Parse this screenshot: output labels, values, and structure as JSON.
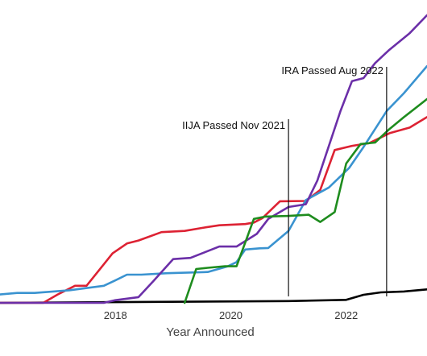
{
  "chart_data": {
    "type": "line",
    "title": "",
    "xlabel": "Year Announced",
    "ylabel": "",
    "xlim": [
      2016.0,
      2023.4
    ],
    "ylim": [
      0,
      100
    ],
    "x_ticks": [
      2018,
      2020,
      2022
    ],
    "x_tick_labels": [
      "2018",
      "2020",
      "2022"
    ],
    "grid": false,
    "legend": "none",
    "annotations": [
      {
        "label": "IIJA Passed Nov 2021",
        "x": 2021.0
      },
      {
        "label": "IRA Passed Aug 2022",
        "x": 2022.7
      }
    ],
    "series": [
      {
        "color": "#000000",
        "x": [
          2016.0,
          2021.0,
          2022.0,
          2022.3,
          2022.6,
          2023.0,
          2023.4
        ],
        "y": [
          0.0,
          0.6,
          1.0,
          2.7,
          3.5,
          3.8,
          4.5
        ]
      },
      {
        "color": "#dd2233",
        "x": [
          2016.0,
          2016.25,
          2016.55,
          2016.75,
          2017.0,
          2017.3,
          2017.5,
          2017.95,
          2018.2,
          2018.4,
          2018.8,
          2019.2,
          2019.5,
          2019.8,
          2020.25,
          2020.4,
          2020.55,
          2020.85,
          2021.3,
          2021.55,
          2021.8,
          2022.1,
          2022.4,
          2022.75,
          2023.1,
          2023.4
        ],
        "y": [
          0.0,
          0.0,
          0.0,
          0.0,
          2.8,
          5.7,
          5.7,
          16.5,
          19.8,
          20.8,
          23.6,
          24.0,
          25.0,
          25.9,
          26.3,
          26.8,
          28.3,
          33.9,
          34.0,
          37.7,
          51.0,
          52.4,
          53.3,
          56.6,
          58.5,
          62.0
        ]
      },
      {
        "color": "#3a93d0",
        "x": [
          2016.0,
          2016.3,
          2016.6,
          2017.2,
          2017.8,
          2018.0,
          2018.2,
          2018.45,
          2018.9,
          2019.6,
          2019.95,
          2020.1,
          2020.25,
          2020.5,
          2020.65,
          2021.0,
          2021.3,
          2021.7,
          2022.05,
          2022.3,
          2022.7,
          2023.0,
          2023.4
        ],
        "y": [
          2.8,
          3.3,
          3.3,
          4.2,
          5.7,
          7.5,
          9.4,
          9.4,
          9.9,
          10.3,
          12.2,
          13.6,
          17.8,
          18.2,
          18.3,
          24.0,
          34.3,
          38.5,
          45.0,
          52.0,
          64.0,
          70.0,
          79.0
        ]
      },
      {
        "color": "#6b2fa8",
        "x": [
          2016.0,
          2016.3,
          2016.6,
          2016.9,
          2017.2,
          2017.4,
          2017.6,
          2017.8,
          2018.0,
          2018.4,
          2018.65,
          2019.0,
          2019.3,
          2019.8,
          2020.1,
          2020.45,
          2020.65,
          2021.0,
          2021.3,
          2021.5,
          2021.9,
          2022.1,
          2022.3,
          2022.5,
          2022.75,
          2023.1,
          2023.4
        ],
        "y": [
          0.0,
          0.0,
          0.0,
          0.0,
          0.0,
          0.0,
          0.0,
          0.0,
          0.9,
          1.9,
          7.1,
          14.6,
          15.0,
          18.8,
          18.8,
          23.0,
          28.0,
          32.0,
          32.9,
          40.8,
          64.0,
          74.0,
          75.0,
          80.0,
          84.5,
          90.0,
          96.0
        ]
      },
      {
        "color": "#1e8c1e",
        "x": [
          2019.2,
          2019.4,
          2019.6,
          2019.9,
          2020.1,
          2020.4,
          2020.6,
          2021.0,
          2021.35,
          2021.55,
          2021.8,
          2022.0,
          2022.25,
          2022.5,
          2022.75,
          2023.0,
          2023.4
        ],
        "y": [
          0.0,
          11.3,
          11.7,
          12.2,
          12.2,
          28.0,
          28.8,
          29.0,
          29.4,
          27.0,
          30.3,
          46.5,
          53.0,
          53.5,
          58.0,
          62.0,
          68.0
        ]
      }
    ]
  }
}
